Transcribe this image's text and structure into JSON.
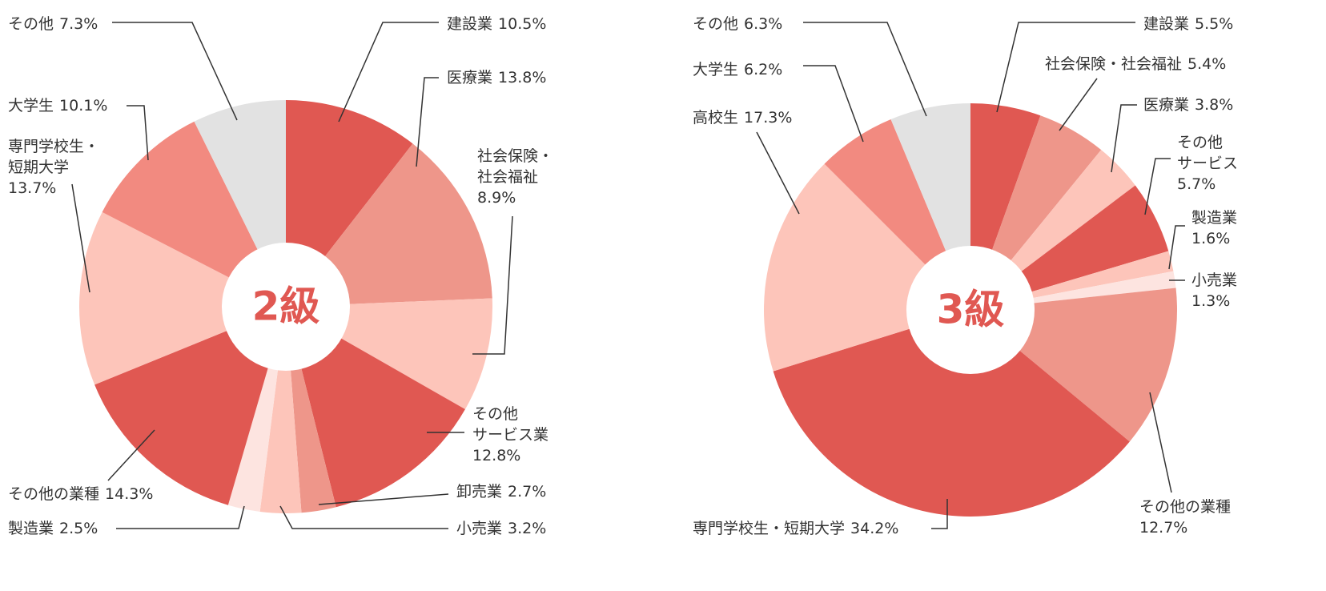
{
  "chart_data": [
    {
      "type": "pie",
      "title": "2級",
      "categories": [
        "建設業",
        "医療業",
        "社会保険・\n社会福祉",
        "その他\nサービス業",
        "卸売業",
        "小売業",
        "製造業",
        "その他の業種",
        "専門学校生・\n短期大学",
        "大学生",
        "その他"
      ],
      "values": [
        10.5,
        13.8,
        8.9,
        12.8,
        2.7,
        3.2,
        2.5,
        14.3,
        13.7,
        10.1,
        7.3
      ],
      "value_labels": [
        "10.5%",
        "13.8%",
        "8.9%",
        "12.8%",
        "2.7%",
        "3.2%",
        "2.5%",
        "14.3%",
        "13.7%",
        "10.1%",
        "7.3%"
      ],
      "colors": [
        "#e05852",
        "#ee968a",
        "#fdc5ba",
        "#e05852",
        "#ee968a",
        "#fdc5ba",
        "#fde4e0",
        "#e05852",
        "#fdc5ba",
        "#f28a80",
        "#e2e2e2"
      ]
    },
    {
      "type": "pie",
      "title": "3級",
      "categories": [
        "建設業",
        "社会保険・社会福祉",
        "医療業",
        "その他\nサービス",
        "製造業",
        "小売業",
        "その他の業種",
        "専門学校生・短期大学",
        "高校生",
        "大学生",
        "その他"
      ],
      "values": [
        5.5,
        5.4,
        3.8,
        5.7,
        1.6,
        1.3,
        12.7,
        34.2,
        17.3,
        6.2,
        6.3
      ],
      "value_labels": [
        "5.5%",
        "5.4%",
        "3.8%",
        "5.7%",
        "1.6%",
        "1.3%",
        "12.7%",
        "34.2%",
        "17.3%",
        "6.2%",
        "6.3%"
      ],
      "colors": [
        "#e05852",
        "#ee968a",
        "#fdc5ba",
        "#e05852",
        "#fdc5ba",
        "#fde4e0",
        "#ee968a",
        "#e05852",
        "#fdc5ba",
        "#f28a80",
        "#e2e2e2"
      ]
    }
  ]
}
